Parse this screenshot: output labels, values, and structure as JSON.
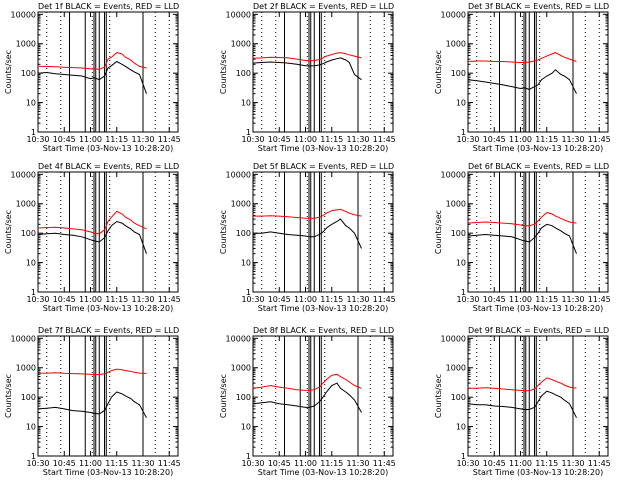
{
  "common": {
    "x_ticks": [
      "10:30",
      "10:45",
      "11:00",
      "11:15",
      "11:30",
      "11:45"
    ],
    "x_tick_minutes": [
      0,
      15,
      30,
      45,
      60,
      75
    ],
    "x_range_minutes": [
      0,
      80
    ],
    "y_ticks": [
      "1",
      "10",
      "100",
      "1000",
      "10000"
    ],
    "y_range": [
      1,
      12000
    ],
    "y_scale": "log",
    "ylabel": "Counts/sec",
    "xlabel": "Start Time (03-Nov-13 10:28:20)",
    "colors": {
      "events": "#000000",
      "lld": "#ff0000",
      "axes": "#000000"
    },
    "dotted_lines_minutes": [
      5,
      13,
      31,
      41,
      67,
      75
    ],
    "solid_lines_minutes": [
      18,
      27,
      32,
      33,
      35,
      38,
      39,
      60
    ]
  },
  "chart_data": [
    {
      "type": "line",
      "title": "Det 1f BLACK = Events, RED = LLD",
      "x_minutes": [
        0,
        5,
        10,
        15,
        20,
        25,
        30,
        32,
        35,
        38,
        40,
        42,
        45,
        48,
        50,
        53,
        55,
        58,
        62
      ],
      "series": [
        {
          "name": "Events",
          "color": "#000000",
          "values": [
            100,
            105,
            95,
            90,
            85,
            80,
            65,
            70,
            60,
            80,
            150,
            180,
            250,
            200,
            170,
            130,
            110,
            90,
            20
          ]
        },
        {
          "name": "LLD",
          "color": "#ff0000",
          "values": [
            170,
            170,
            165,
            160,
            155,
            150,
            140,
            140,
            135,
            160,
            300,
            350,
            500,
            450,
            350,
            280,
            220,
            170,
            150
          ]
        }
      ]
    },
    {
      "type": "line",
      "title": "Det 2f BLACK = Events, RED = LLD",
      "x_minutes": [
        0,
        5,
        10,
        15,
        20,
        25,
        30,
        32,
        35,
        38,
        40,
        42,
        45,
        48,
        50,
        53,
        55,
        58,
        62
      ],
      "series": [
        {
          "name": "Events",
          "color": "#000000",
          "values": [
            220,
            230,
            240,
            230,
            220,
            200,
            180,
            175,
            180,
            190,
            210,
            240,
            280,
            310,
            330,
            280,
            230,
            90,
            60
          ]
        },
        {
          "name": "LLD",
          "color": "#ff0000",
          "values": [
            320,
            330,
            350,
            340,
            330,
            300,
            270,
            260,
            270,
            290,
            330,
            380,
            430,
            480,
            500,
            460,
            420,
            380,
            330
          ]
        }
      ]
    },
    {
      "type": "line",
      "title": "Det 3f BLACK = Events, RED = LLD",
      "x_minutes": [
        0,
        5,
        10,
        15,
        20,
        25,
        30,
        32,
        35,
        38,
        40,
        42,
        45,
        48,
        50,
        53,
        55,
        58,
        62
      ],
      "series": [
        {
          "name": "Events",
          "color": "#000000",
          "values": [
            60,
            55,
            50,
            45,
            40,
            35,
            30,
            32,
            28,
            35,
            40,
            60,
            80,
            100,
            130,
            90,
            80,
            60,
            20
          ]
        },
        {
          "name": "LLD",
          "color": "#ff0000",
          "values": [
            250,
            260,
            260,
            250,
            250,
            240,
            230,
            230,
            240,
            260,
            280,
            320,
            380,
            450,
            500,
            400,
            350,
            300,
            250
          ]
        }
      ]
    },
    {
      "type": "line",
      "title": "Det 4f BLACK = Events, RED = LLD",
      "x_minutes": [
        0,
        5,
        10,
        15,
        20,
        25,
        30,
        32,
        35,
        38,
        40,
        42,
        45,
        48,
        50,
        53,
        55,
        58,
        62
      ],
      "series": [
        {
          "name": "Events",
          "color": "#000000",
          "values": [
            90,
            95,
            100,
            90,
            85,
            75,
            60,
            55,
            50,
            70,
            120,
            180,
            250,
            220,
            180,
            140,
            110,
            90,
            20
          ]
        },
        {
          "name": "LLD",
          "color": "#ff0000",
          "values": [
            150,
            155,
            160,
            150,
            140,
            130,
            110,
            100,
            95,
            130,
            250,
            350,
            550,
            450,
            350,
            280,
            220,
            180,
            140
          ]
        }
      ]
    },
    {
      "type": "line",
      "title": "Det 5f BLACK = Events, RED = LLD",
      "x_minutes": [
        0,
        5,
        10,
        15,
        20,
        25,
        30,
        32,
        35,
        38,
        40,
        42,
        45,
        48,
        50,
        53,
        55,
        58,
        62
      ],
      "series": [
        {
          "name": "Events",
          "color": "#000000",
          "values": [
            100,
            100,
            110,
            100,
            90,
            85,
            80,
            75,
            75,
            90,
            110,
            150,
            200,
            250,
            300,
            180,
            150,
            100,
            30
          ]
        },
        {
          "name": "LLD",
          "color": "#ff0000",
          "values": [
            380,
            380,
            390,
            380,
            360,
            340,
            320,
            320,
            320,
            350,
            400,
            480,
            580,
            620,
            650,
            550,
            480,
            420,
            380
          ]
        }
      ]
    },
    {
      "type": "line",
      "title": "Det 6f BLACK = Events, RED = LLD",
      "x_minutes": [
        0,
        5,
        10,
        15,
        20,
        25,
        30,
        32,
        35,
        38,
        40,
        42,
        45,
        48,
        50,
        53,
        55,
        58,
        62
      ],
      "series": [
        {
          "name": "Events",
          "color": "#000000",
          "values": [
            80,
            85,
            90,
            85,
            80,
            75,
            60,
            55,
            50,
            70,
            100,
            150,
            200,
            180,
            150,
            120,
            100,
            80,
            20
          ]
        },
        {
          "name": "LLD",
          "color": "#ff0000",
          "values": [
            220,
            230,
            240,
            230,
            220,
            210,
            190,
            180,
            180,
            200,
            260,
            350,
            500,
            450,
            380,
            320,
            280,
            240,
            220
          ]
        }
      ]
    },
    {
      "type": "line",
      "title": "Det 7f BLACK = Events, RED = LLD",
      "x_minutes": [
        0,
        5,
        10,
        15,
        20,
        25,
        30,
        32,
        35,
        38,
        40,
        42,
        45,
        48,
        50,
        53,
        55,
        58,
        62
      ],
      "series": [
        {
          "name": "Events",
          "color": "#000000",
          "values": [
            40,
            42,
            45,
            40,
            35,
            33,
            30,
            28,
            27,
            35,
            60,
            100,
            150,
            130,
            110,
            90,
            70,
            55,
            20
          ]
        },
        {
          "name": "LLD",
          "color": "#ff0000",
          "values": [
            650,
            660,
            680,
            650,
            630,
            620,
            600,
            590,
            590,
            620,
            700,
            800,
            900,
            850,
            800,
            750,
            700,
            660,
            640
          ]
        }
      ]
    },
    {
      "type": "line",
      "title": "Det 8f BLACK = Events, RED = LLD",
      "x_minutes": [
        0,
        5,
        10,
        15,
        20,
        25,
        30,
        32,
        35,
        38,
        40,
        42,
        45,
        48,
        50,
        53,
        55,
        58,
        62
      ],
      "series": [
        {
          "name": "Events",
          "color": "#000000",
          "values": [
            60,
            65,
            70,
            60,
            55,
            50,
            45,
            45,
            50,
            70,
            100,
            150,
            250,
            300,
            200,
            150,
            120,
            80,
            30
          ]
        },
        {
          "name": "LLD",
          "color": "#ff0000",
          "values": [
            200,
            220,
            250,
            220,
            200,
            180,
            170,
            170,
            180,
            220,
            300,
            400,
            550,
            600,
            500,
            400,
            330,
            250,
            200
          ]
        }
      ]
    },
    {
      "type": "line",
      "title": "Det 9f BLACK = Events, RED = LLD",
      "x_minutes": [
        0,
        5,
        10,
        15,
        20,
        25,
        30,
        32,
        35,
        38,
        40,
        42,
        45,
        48,
        50,
        53,
        55,
        58,
        62
      ],
      "series": [
        {
          "name": "Events",
          "color": "#000000",
          "values": [
            60,
            55,
            55,
            50,
            48,
            45,
            40,
            38,
            38,
            45,
            70,
            110,
            160,
            140,
            120,
            100,
            80,
            60,
            20
          ]
        },
        {
          "name": "LLD",
          "color": "#ff0000",
          "values": [
            200,
            200,
            210,
            200,
            190,
            180,
            170,
            165,
            165,
            190,
            250,
            320,
            450,
            400,
            350,
            300,
            260,
            220,
            200
          ]
        }
      ]
    }
  ]
}
